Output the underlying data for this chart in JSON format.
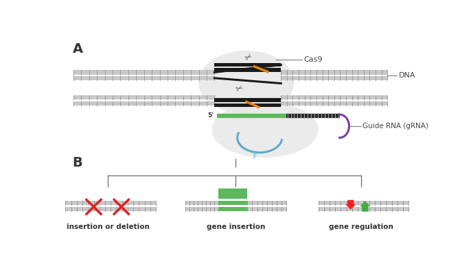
{
  "background_color": "#ffffff",
  "label_A": "A",
  "label_B": "B",
  "cas9_label": "Cas9",
  "dna_label": "DNA",
  "guide_rna_label": "Guide RNA (gRNA)",
  "prime5_label": "5'",
  "prime3_label": "3'",
  "insertion_deletion_label": "insertion or deletion",
  "gene_insertion_label": "gene insertion",
  "gene_regulation_label": "gene regulation",
  "dna_color": "#c8c8c8",
  "dna_stripe_color": "#999999",
  "black_strand_color": "#1a1a1a",
  "orange_color": "#e8820a",
  "green_color": "#5cb85c",
  "purple_color": "#7b3fa0",
  "blue_color": "#5aabcc",
  "red_color": "#dd2222",
  "arrow_green": "#44aa44",
  "arrow_red": "#ee2222",
  "label_color": "#444444",
  "blob_color": "#e8e8e8",
  "figsize": [
    6.7,
    3.91
  ],
  "dpi": 100
}
